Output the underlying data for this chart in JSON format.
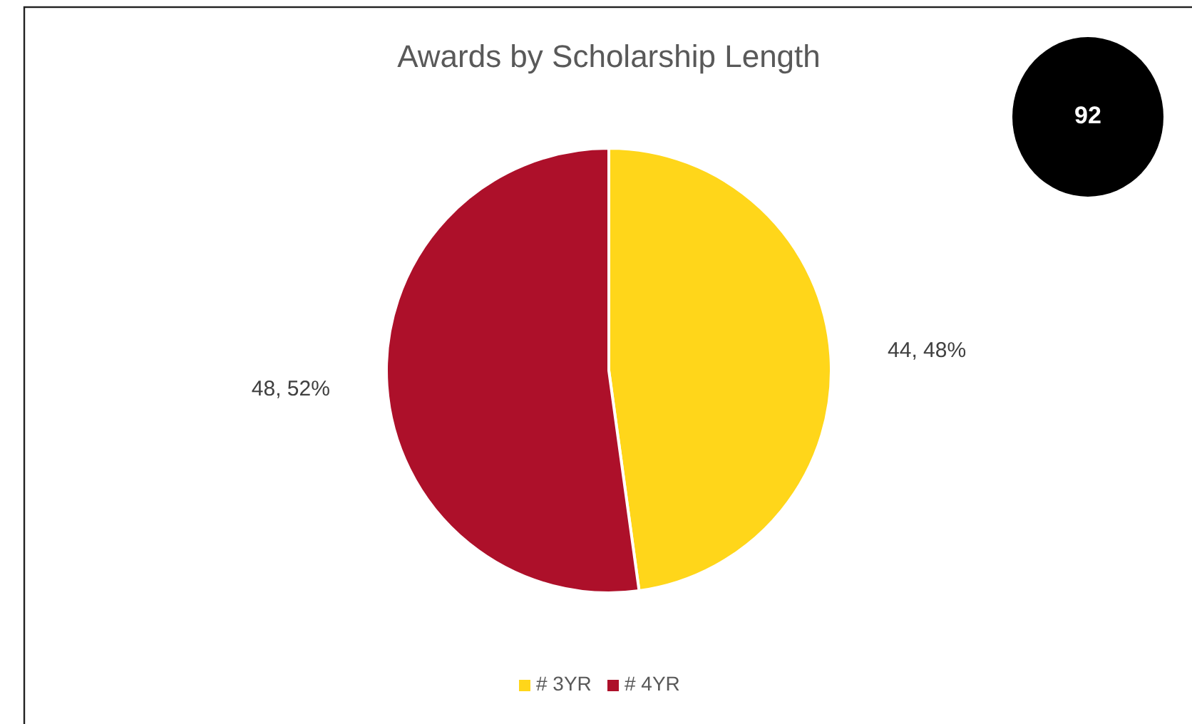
{
  "chart_data": {
    "type": "pie",
    "title": "Awards by Scholarship Length",
    "categories": [
      "# 3YR",
      "# 4YR"
    ],
    "values": [
      44,
      48
    ],
    "colors": [
      "#ffd61a",
      "#ad102a"
    ],
    "value_labels": [
      "44, 48%",
      "48, 52%"
    ],
    "annotations": [
      "92"
    ],
    "legend": "bottom"
  }
}
